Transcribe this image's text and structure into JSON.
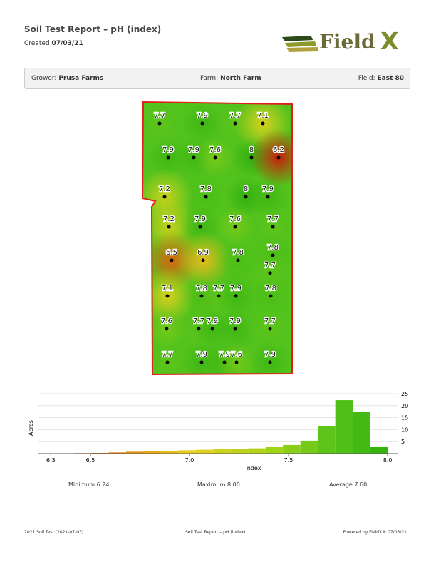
{
  "header": {
    "title": "Soil Test Report – pH (index)",
    "created_label": "Created",
    "created": "07/03/21",
    "logo_word": "Field",
    "logo_mark": "X"
  },
  "info": {
    "grower_label": "Grower:",
    "grower": "Prusa Farms",
    "farm_label": "Farm:",
    "farm": "North Farm",
    "field_label": "Field:",
    "field": "East 80"
  },
  "map": {
    "samples": [
      7.7,
      7.9,
      7.7,
      7.1,
      7.9,
      7.9,
      7.6,
      8,
      6.2,
      7.2,
      7.8,
      8,
      7.9,
      7.2,
      7.9,
      7.6,
      7.7,
      6.5,
      6.9,
      7.8,
      7.8,
      7.7,
      7.1,
      7.8,
      7.7,
      7.9,
      7.8,
      7.6,
      7.7,
      7.9,
      7.9,
      7.7,
      7.7,
      7.9,
      7.9,
      7.6,
      7.9
    ]
  },
  "chart_data": {
    "type": "histogram",
    "x_label": "index",
    "y_label": "Acres",
    "bins": [
      6.24,
      6.328,
      6.416,
      6.504,
      6.592,
      6.68,
      6.768,
      6.856,
      6.944,
      7.032,
      7.12,
      7.208,
      7.296,
      7.384,
      7.472,
      7.56,
      7.648,
      7.736,
      7.824,
      7.912,
      8.0
    ],
    "values": [
      0.1,
      0.1,
      0.2,
      0.3,
      0.5,
      0.8,
      1,
      1.2,
      1.4,
      1.6,
      1.8,
      2,
      2.2,
      2.7,
      3.6,
      5.4,
      11.6,
      22.3,
      17.5,
      2.7
    ],
    "xlim": [
      6.234,
      8.05
    ],
    "xticks": [
      6.3,
      6.5,
      {
        "value": 7,
        "label": "7.0"
      },
      7.5,
      {
        "value": 8,
        "label": "8.0"
      }
    ],
    "ylim": [
      0,
      25
    ],
    "yticks": [
      5,
      10,
      15,
      20,
      25
    ],
    "grid": true
  },
  "stats": {
    "min_label": "Minimum",
    "min": "6.24",
    "max_label": "Maximum",
    "max": "8.00",
    "avg_label": "Average",
    "avg": "7.60"
  },
  "footer": {
    "left": "2021 Soil Test (2021-07-03)",
    "center": "Soil Test Report – pH (index)",
    "right": "Powered by FieldX®  07/03/21"
  }
}
